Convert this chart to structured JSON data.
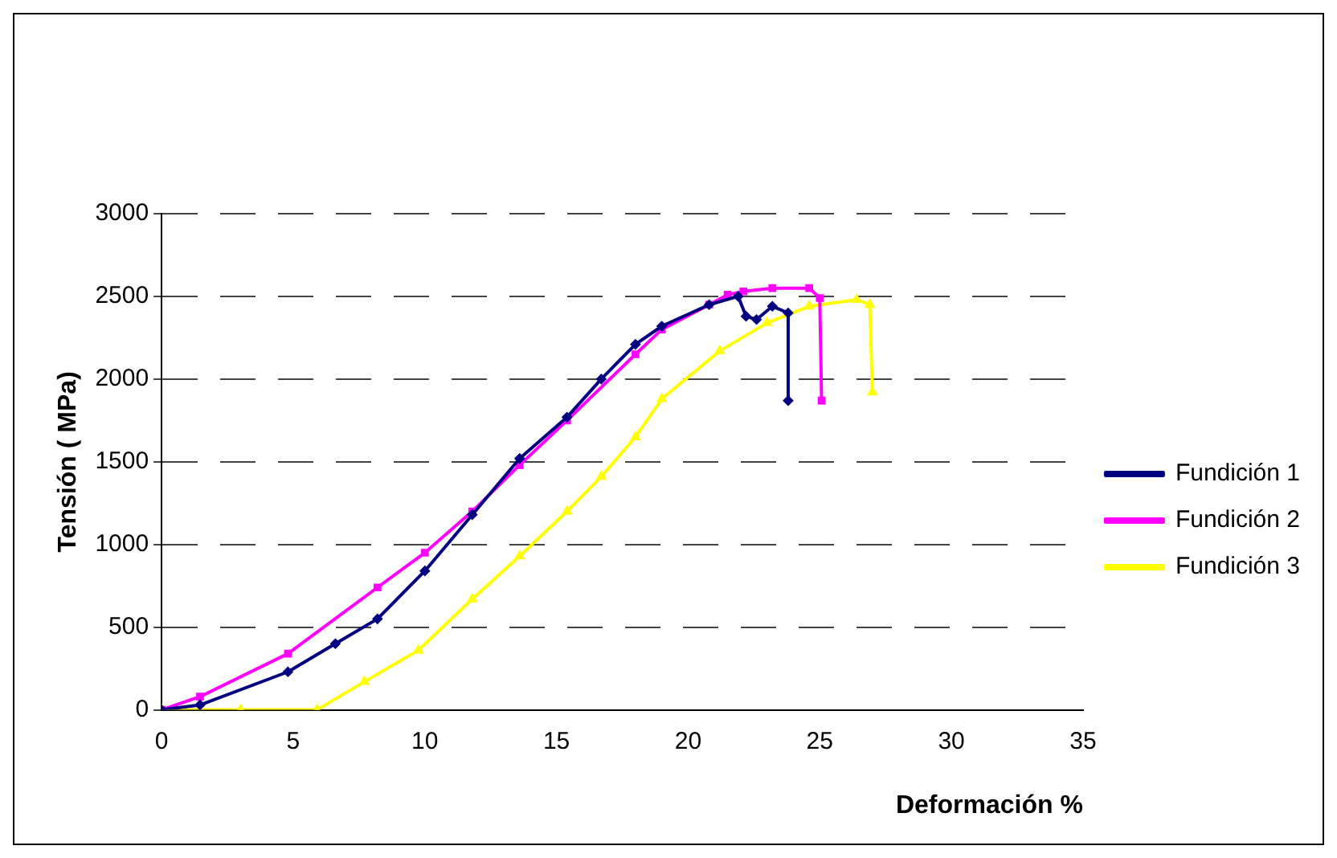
{
  "chart_data": {
    "type": "line",
    "xlabel": "Deformación %",
    "ylabel": "Tensión ( MPa)",
    "xlim": [
      0,
      35
    ],
    "xticks": [
      0,
      5,
      10,
      15,
      20,
      25,
      30,
      35
    ],
    "ylim": [
      0,
      3000
    ],
    "yticks": [
      0,
      500,
      1000,
      1500,
      2000,
      2500,
      3000
    ],
    "grid": "y",
    "legend": "right",
    "line_style": "solid",
    "series": [
      {
        "name": "Fundición 1",
        "color": "#000080",
        "marker": "diamond",
        "x": [
          0,
          1.46,
          4.8,
          6.6,
          8.2,
          10.0,
          11.8,
          13.6,
          15.4,
          16.7,
          18.0,
          19.0,
          20.8,
          21.9,
          22.2,
          22.6,
          23.2,
          23.8,
          23.8
        ],
        "values": [
          0,
          30,
          230,
          400,
          550,
          840,
          1180,
          1520,
          1770,
          2000,
          2210,
          2320,
          2450,
          2500,
          2380,
          2360,
          2440,
          2400,
          1870
        ]
      },
      {
        "name": "Fundición 2",
        "color": "#ff00ff",
        "marker": "square",
        "x": [
          0,
          1.46,
          4.8,
          8.2,
          10.0,
          11.8,
          13.6,
          15.4,
          18.0,
          19.0,
          20.8,
          21.5,
          22.1,
          23.2,
          24.6,
          25.0,
          25.07
        ],
        "values": [
          0,
          80,
          340,
          740,
          950,
          1200,
          1480,
          1750,
          2150,
          2300,
          2450,
          2510,
          2530,
          2550,
          2550,
          2490,
          1870
        ]
      },
      {
        "name": "Fundición 3",
        "color": "#ffff00",
        "marker": "triangle",
        "x": [
          0,
          3,
          5.9,
          7.7,
          9.75,
          11.8,
          13.6,
          15.4,
          16.7,
          18.0,
          19.0,
          21.2,
          23.0,
          24.6,
          26.4,
          26.9,
          27.0
        ],
        "values": [
          0,
          0,
          0,
          170,
          360,
          670,
          930,
          1200,
          1410,
          1650,
          1880,
          2170,
          2340,
          2440,
          2480,
          2450,
          1920
        ]
      }
    ]
  }
}
